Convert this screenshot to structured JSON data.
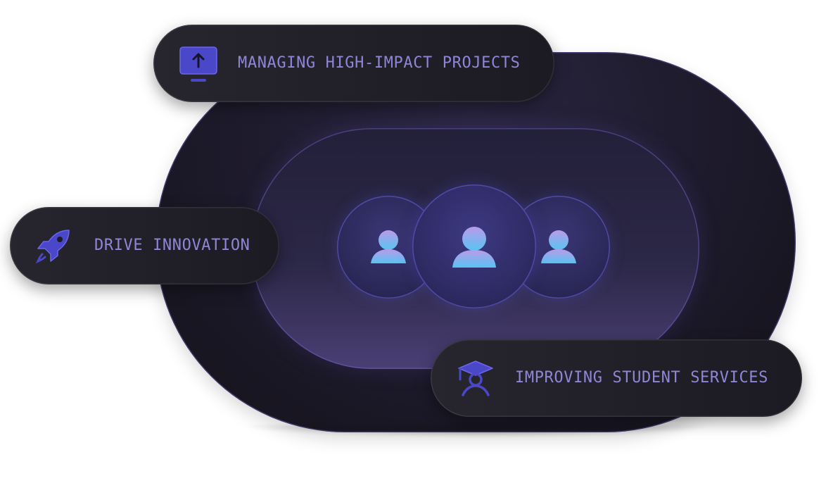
{
  "pills": {
    "top": {
      "label": "MANAGING HIGH-IMPACT PROJECTS",
      "icon": "monitor-upload-icon"
    },
    "left": {
      "label": "DRIVE INNOVATION",
      "icon": "rocket-icon"
    },
    "bottom": {
      "label": "IMPROVING STUDENT SERVICES",
      "icon": "graduation-cap-icon"
    }
  },
  "avatars": [
    {
      "icon": "user-icon"
    },
    {
      "icon": "user-icon"
    },
    {
      "icon": "user-icon"
    }
  ],
  "colors": {
    "label": "#8f86d8",
    "accent": "#4b4bd6",
    "avatar_top": "#b39ae8",
    "avatar_bottom": "#5fc0f2"
  }
}
